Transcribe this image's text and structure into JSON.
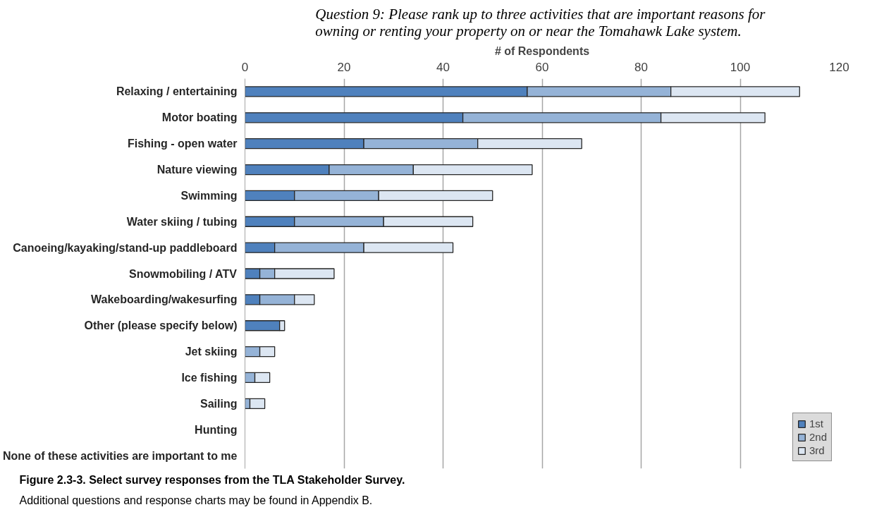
{
  "chart_data": {
    "type": "bar",
    "orientation": "horizontal",
    "stacked": true,
    "title": "Question 9:  Please rank up to three activities that are important reasons for owning or renting your property on or near the Tomahawk Lake system.",
    "xlabel": "# of Respondents",
    "categories": [
      "Relaxing / entertaining",
      "Motor boating",
      "Fishing - open water",
      "Nature viewing",
      "Swimming",
      "Water skiing / tubing",
      "Canoeing/kayaking/stand-up paddleboard",
      "Snowmobiling / ATV",
      "Wakeboarding/wakesurfing",
      "Other (please specify below)",
      "Jet skiing",
      "Ice fishing",
      "Sailing",
      "Hunting",
      "None of these activities are important to me"
    ],
    "series": [
      {
        "name": "1st",
        "color": "#4f81bd",
        "values": [
          57,
          44,
          24,
          17,
          10,
          10,
          6,
          3,
          3,
          7,
          0,
          0,
          0,
          0,
          0
        ]
      },
      {
        "name": "2nd",
        "color": "#95b3d7",
        "values": [
          29,
          40,
          23,
          17,
          17,
          18,
          18,
          3,
          7,
          0,
          3,
          2,
          1,
          0,
          0
        ]
      },
      {
        "name": "3rd",
        "color": "#dce6f2",
        "values": [
          26,
          21,
          21,
          24,
          23,
          18,
          18,
          12,
          4,
          1,
          3,
          3,
          3,
          0,
          0
        ]
      }
    ],
    "xlim": [
      0,
      120
    ],
    "xticks": [
      0,
      20,
      40,
      60,
      80,
      100,
      120
    ],
    "grid": "x",
    "legend": "bottom right",
    "annotations": [
      "Figure 2.3-3.  Select survey responses from the TLA Stakeholder Survey.",
      "Additional questions and response charts may be found in Appendix B."
    ]
  }
}
